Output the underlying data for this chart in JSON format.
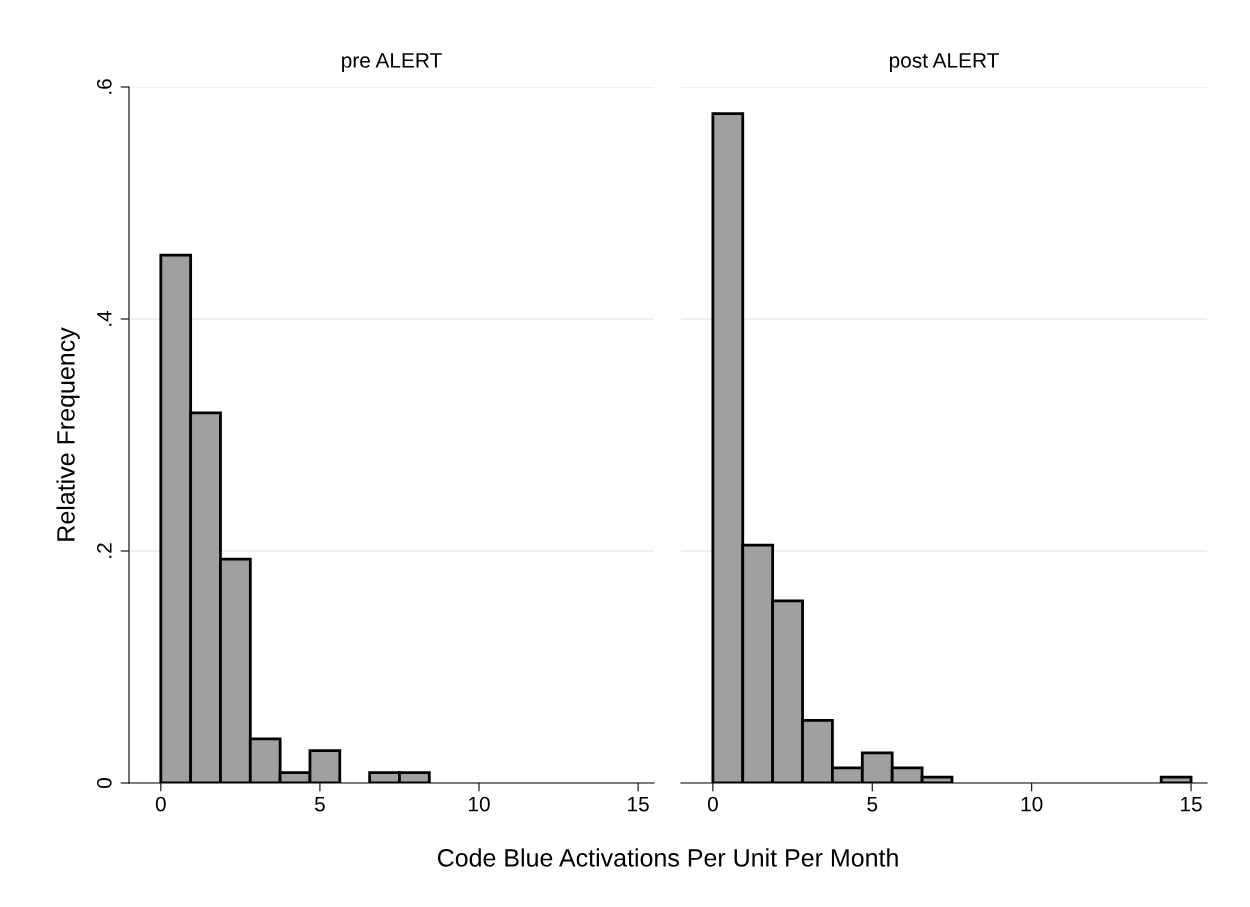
{
  "chart_data": [
    {
      "type": "histogram",
      "title": "pre ALERT",
      "ylabel": "Relative Frequency",
      "xlabel": "Code Blue Activations Per Unit Per Month",
      "bins": [
        0,
        0.9375,
        1.875,
        2.8125,
        3.75,
        4.6875,
        5.625,
        6.5625,
        7.5,
        8.4375,
        9.375,
        10.3125,
        11.25,
        12.1875,
        13.125,
        14.0625,
        15
      ],
      "values": [
        0.455,
        0.319,
        0.193,
        0.038,
        0.009,
        0.028,
        0,
        0.009,
        0.009,
        0,
        0,
        0,
        0,
        0,
        0,
        0
      ],
      "color": "#a0a0a0",
      "xlim": [
        -1,
        15.5
      ],
      "ylim": [
        0,
        0.6
      ],
      "xticks": [
        0,
        5,
        10,
        15
      ],
      "yticks": [
        {
          "value": 0,
          "label": "0"
        },
        {
          "value": 0.2,
          "label": ".2"
        },
        {
          "value": 0.4,
          "label": ".4"
        },
        {
          "value": 0.6,
          "label": ".6"
        }
      ],
      "grid": "y"
    },
    {
      "type": "histogram",
      "title": "post ALERT",
      "bins": [
        0,
        0.9375,
        1.875,
        2.8125,
        3.75,
        4.6875,
        5.625,
        6.5625,
        7.5,
        8.4375,
        9.375,
        10.3125,
        11.25,
        12.1875,
        13.125,
        14.0625,
        15
      ],
      "values": [
        0.577,
        0.205,
        0.157,
        0.054,
        0.013,
        0.026,
        0.013,
        0.005,
        0,
        0,
        0,
        0,
        0,
        0,
        0,
        0.005
      ],
      "color": "#a0a0a0",
      "xlim": [
        -1,
        15.5
      ],
      "ylim": [
        0,
        0.6
      ],
      "xticks": [
        0,
        5,
        10,
        15
      ],
      "yticks": [
        0,
        0.2,
        0.4,
        0.6
      ],
      "grid": "y",
      "tick_labels": "x"
    }
  ]
}
